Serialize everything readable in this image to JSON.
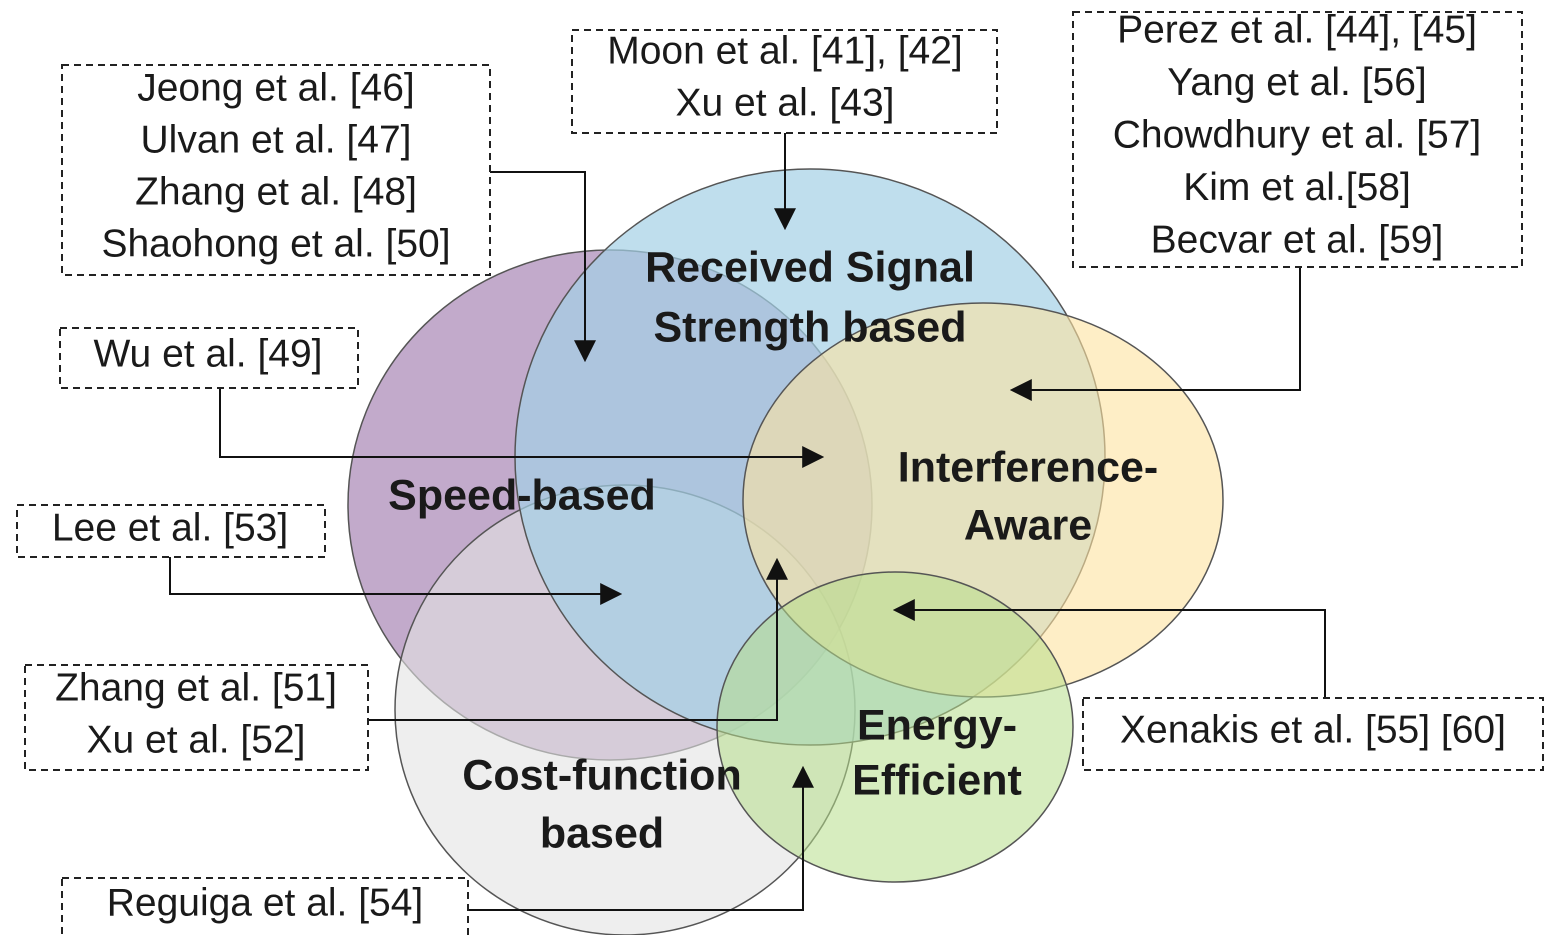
{
  "sets": [
    {
      "lines": [
        "Received Signal",
        "Strength based"
      ]
    },
    {
      "lines": [
        "Speed-based"
      ]
    },
    {
      "lines": [
        "Interference-",
        "Aware"
      ]
    },
    {
      "lines": [
        "Energy-",
        "Efficient"
      ]
    },
    {
      "lines": [
        "Cost-function",
        "based"
      ]
    }
  ],
  "boxes": [
    {
      "lines": [
        "Jeong et al. [46]",
        "Ulvan et al. [47]",
        "Zhang et al. [48]",
        "Shaohong et al. [50]"
      ]
    },
    {
      "lines": [
        "Moon et al. [41], [42]",
        "Xu et al. [43]"
      ]
    },
    {
      "lines": [
        "Perez et al. [44], [45]",
        "Yang et al. [56]",
        "Chowdhury et al. [57]",
        "Kim et al.[58]",
        "Becvar et al. [59]"
      ]
    },
    {
      "lines": [
        "Wu et al. [49]"
      ]
    },
    {
      "lines": [
        "Lee et al. [53]"
      ]
    },
    {
      "lines": [
        "Zhang et al. [51]",
        "Xu et al. [52]"
      ]
    },
    {
      "lines": [
        "Xenakis et al. [55] [60]"
      ]
    },
    {
      "lines": [
        "Reguiga et al. [54]"
      ]
    }
  ]
}
